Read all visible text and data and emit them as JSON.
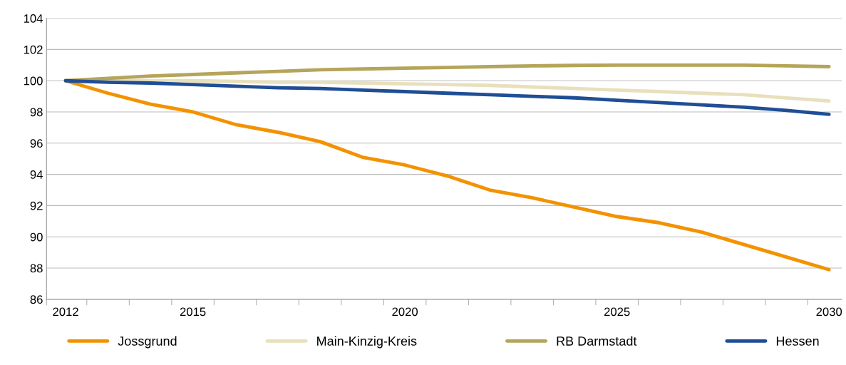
{
  "chart_data": {
    "type": "line",
    "categories": [
      "2012",
      null,
      null,
      "2015",
      null,
      null,
      null,
      null,
      "2020",
      null,
      null,
      null,
      null,
      "2025",
      null,
      null,
      null,
      null,
      "2030"
    ],
    "series": [
      {
        "name": "Jossgrund",
        "color": "#f39200",
        "values": [
          100,
          99.2,
          98.5,
          98.0,
          97.2,
          96.7,
          96.1,
          95.1,
          94.6,
          93.9,
          93.0,
          92.5,
          91.9,
          91.3,
          90.9,
          90.3,
          89.5,
          88.7,
          87.9
        ]
      },
      {
        "name": "Main-Kinzig-Kreis",
        "color": "#e8e0bd",
        "values": [
          100,
          100,
          100,
          100,
          99.95,
          99.9,
          99.9,
          99.85,
          99.8,
          99.75,
          99.7,
          99.6,
          99.5,
          99.4,
          99.3,
          99.2,
          99.1,
          98.9,
          98.7
        ]
      },
      {
        "name": "RB Darmstadt",
        "color": "#b5a55a",
        "values": [
          100,
          100.15,
          100.3,
          100.4,
          100.5,
          100.6,
          100.7,
          100.75,
          100.8,
          100.85,
          100.9,
          100.95,
          100.98,
          101.0,
          101.0,
          101.0,
          101.0,
          100.95,
          100.9
        ]
      },
      {
        "name": "Hessen",
        "color": "#1f4e96",
        "values": [
          100,
          99.9,
          99.85,
          99.75,
          99.65,
          99.55,
          99.5,
          99.4,
          99.3,
          99.2,
          99.1,
          99.0,
          98.9,
          98.75,
          98.6,
          98.45,
          98.3,
          98.1,
          97.85
        ]
      }
    ],
    "ylim": [
      86,
      104
    ],
    "yticks": [
      86,
      88,
      90,
      92,
      94,
      96,
      98,
      100,
      102,
      104
    ],
    "grid": "y",
    "legend": "bottom",
    "marker": "none",
    "line_style": "solid"
  }
}
